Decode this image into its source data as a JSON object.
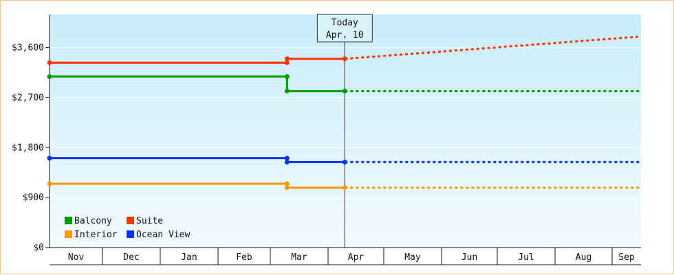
{
  "chart_data": {
    "type": "line",
    "step": true,
    "title": "",
    "xlabel": "",
    "ylabel": "",
    "ylim": [
      0,
      4200
    ],
    "y_ticks": [
      0,
      900,
      1800,
      2700,
      3600
    ],
    "y_tick_labels": [
      "$0",
      "$900",
      "$1,800",
      "$2,700",
      "$3,600"
    ],
    "x_months": [
      "Nov",
      "Dec",
      "Jan",
      "Feb",
      "Mar",
      "Apr",
      "May",
      "Jun",
      "Jul",
      "Aug",
      "Sep"
    ],
    "today": {
      "line1": "Today",
      "line2": "Apr. 10",
      "label": "Apr. 10"
    },
    "series": [
      {
        "name": "Suite",
        "color": "#ff3300",
        "history": [
          [
            "Nov 1",
            3330
          ],
          [
            "Mar 10",
            3330
          ],
          [
            "Mar 10",
            3400
          ],
          [
            "Apr 10",
            3400
          ]
        ],
        "forecast": [
          [
            "Apr 10",
            3400
          ],
          [
            "Sep 30",
            3800
          ]
        ]
      },
      {
        "name": "Balcony",
        "color": "#009900",
        "history": [
          [
            "Nov 1",
            3080
          ],
          [
            "Mar 10",
            3080
          ],
          [
            "Mar 10",
            2820
          ],
          [
            "Apr 10",
            2820
          ]
        ],
        "forecast": [
          [
            "Apr 10",
            2820
          ],
          [
            "Sep 30",
            2820
          ]
        ]
      },
      {
        "name": "Ocean View",
        "color": "#0033ff",
        "history": [
          [
            "Nov 1",
            1610
          ],
          [
            "Mar 10",
            1610
          ],
          [
            "Mar 10",
            1540
          ],
          [
            "Apr 10",
            1540
          ]
        ],
        "forecast": [
          [
            "Apr 10",
            1540
          ],
          [
            "Sep 30",
            1540
          ]
        ]
      },
      {
        "name": "Interior",
        "color": "#ff9900",
        "history": [
          [
            "Nov 1",
            1150
          ],
          [
            "Mar 10",
            1150
          ],
          [
            "Mar 10",
            1080
          ],
          [
            "Apr 10",
            1080
          ]
        ],
        "forecast": [
          [
            "Apr 10",
            1080
          ],
          [
            "Sep 30",
            1080
          ]
        ]
      }
    ],
    "legend": {
      "placement": "bottom-left",
      "items": [
        {
          "name": "Balcony",
          "color": "#009900"
        },
        {
          "name": "Suite",
          "color": "#ff3300"
        },
        {
          "name": "Interior",
          "color": "#ff9900"
        },
        {
          "name": "Ocean View",
          "color": "#0033ff"
        }
      ]
    }
  }
}
